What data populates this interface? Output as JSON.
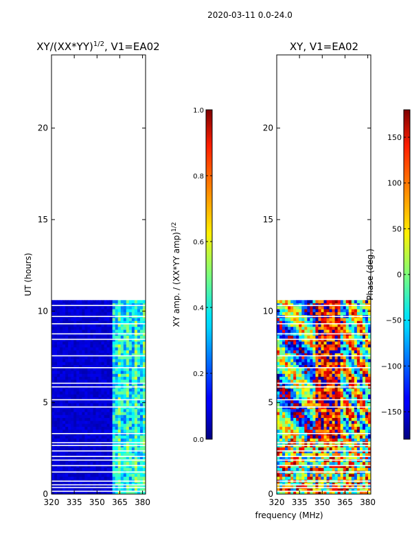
{
  "figure_title": "2020-03-11 0.0-24.0",
  "shared_xlabel": "frequency (MHz)",
  "chart_data": [
    {
      "type": "heatmap",
      "title_main": "XY/(XX*YY)",
      "title_sup": "1/2",
      "title_tail": ", V1=EA02",
      "xlabel": "frequency (MHz)",
      "ylabel": "UT (hours)",
      "xlim": [
        320,
        382
      ],
      "ylim": [
        0,
        24
      ],
      "xticks": [
        320,
        335,
        350,
        365,
        380
      ],
      "yticks": [
        0,
        5,
        10,
        15,
        20
      ],
      "data_extent_hours": [
        0.0,
        10.6
      ],
      "colorbar": {
        "label_main": "XY amp. / (XX*YY amp)",
        "label_sup": "1/2",
        "range": [
          0.0,
          1.0
        ],
        "ticks": [
          "0.0",
          "0.2",
          "0.4",
          "0.6",
          "0.8",
          "1.0"
        ],
        "tick_values": [
          0.0,
          0.2,
          0.4,
          0.6,
          0.8,
          1.0
        ]
      }
    },
    {
      "type": "heatmap",
      "title_main": "XY, V1=EA02",
      "xlabel": "frequency (MHz)",
      "ylabel": "",
      "xlim": [
        320,
        382
      ],
      "ylim": [
        0,
        24
      ],
      "xticks": [
        320,
        335,
        350,
        365,
        380
      ],
      "yticks": [
        0,
        5,
        10,
        15,
        20
      ],
      "data_extent_hours": [
        0.0,
        10.6
      ],
      "colorbar": {
        "label_main": "Phase (deg.)",
        "range": [
          -180,
          180
        ],
        "ticks": [
          "150",
          "100",
          "50",
          "0",
          "−50",
          "−100",
          "−150"
        ],
        "tick_values": [
          150,
          100,
          50,
          0,
          -50,
          -100,
          -150
        ]
      }
    }
  ]
}
